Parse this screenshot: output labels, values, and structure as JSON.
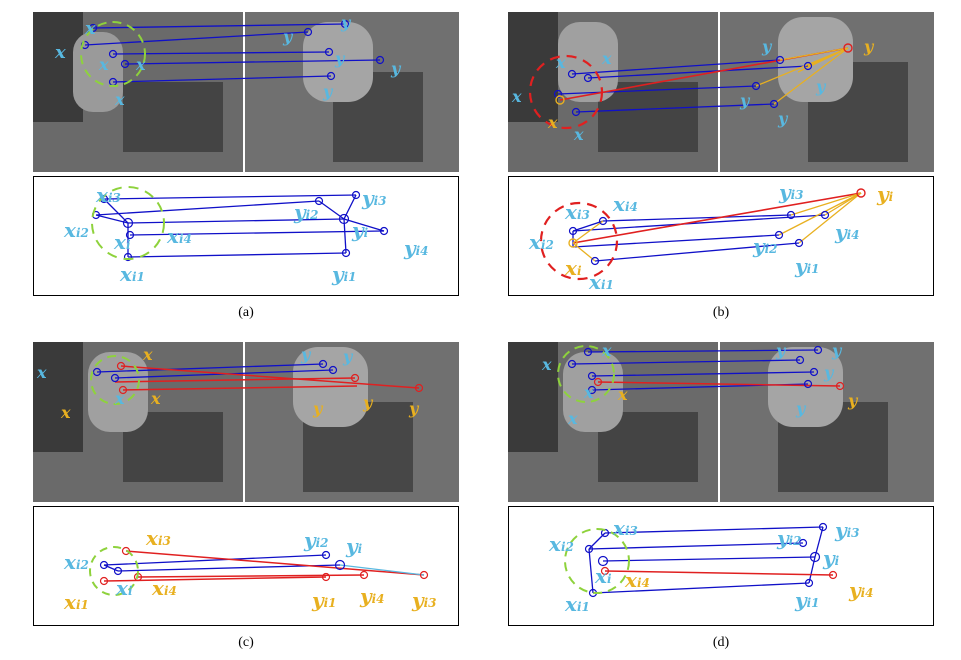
{
  "figure": {
    "panels": [
      {
        "caption": "(a)",
        "photo_labels": {
          "xi3": "x",
          "xi3_sub": "i3",
          "xi2": "x",
          "xi2_sub": "i2",
          "xi": "x",
          "xi_sub": "i",
          "xi4": "x",
          "xi4_sub": "i4",
          "xi1": "x",
          "xi1_sub": "i1",
          "yi3": "y",
          "yi3_sub": "i3",
          "yi2": "y",
          "yi2_sub": "i2",
          "yi": "y",
          "yi_sub": "i",
          "yi4": "y",
          "yi4_sub": "i4",
          "yi1": "y",
          "yi1_sub": "i1"
        }
      },
      {
        "caption": "(b)"
      },
      {
        "caption": "(c)"
      },
      {
        "caption": "(d)"
      }
    ],
    "colors": {
      "inlier_line": "#1010c8",
      "outlier_line": "#e02020",
      "fan_line": "#e8b020",
      "label_blue": "#58b8e0",
      "label_yellow": "#e8b020",
      "neighborhood_green": "#8ed23c",
      "neighborhood_red": "#e02020"
    },
    "sym": {
      "x": "x",
      "y": "y",
      "i": "i",
      "i1": "i1",
      "i2": "i2",
      "i3": "i3",
      "i4": "i4"
    }
  }
}
